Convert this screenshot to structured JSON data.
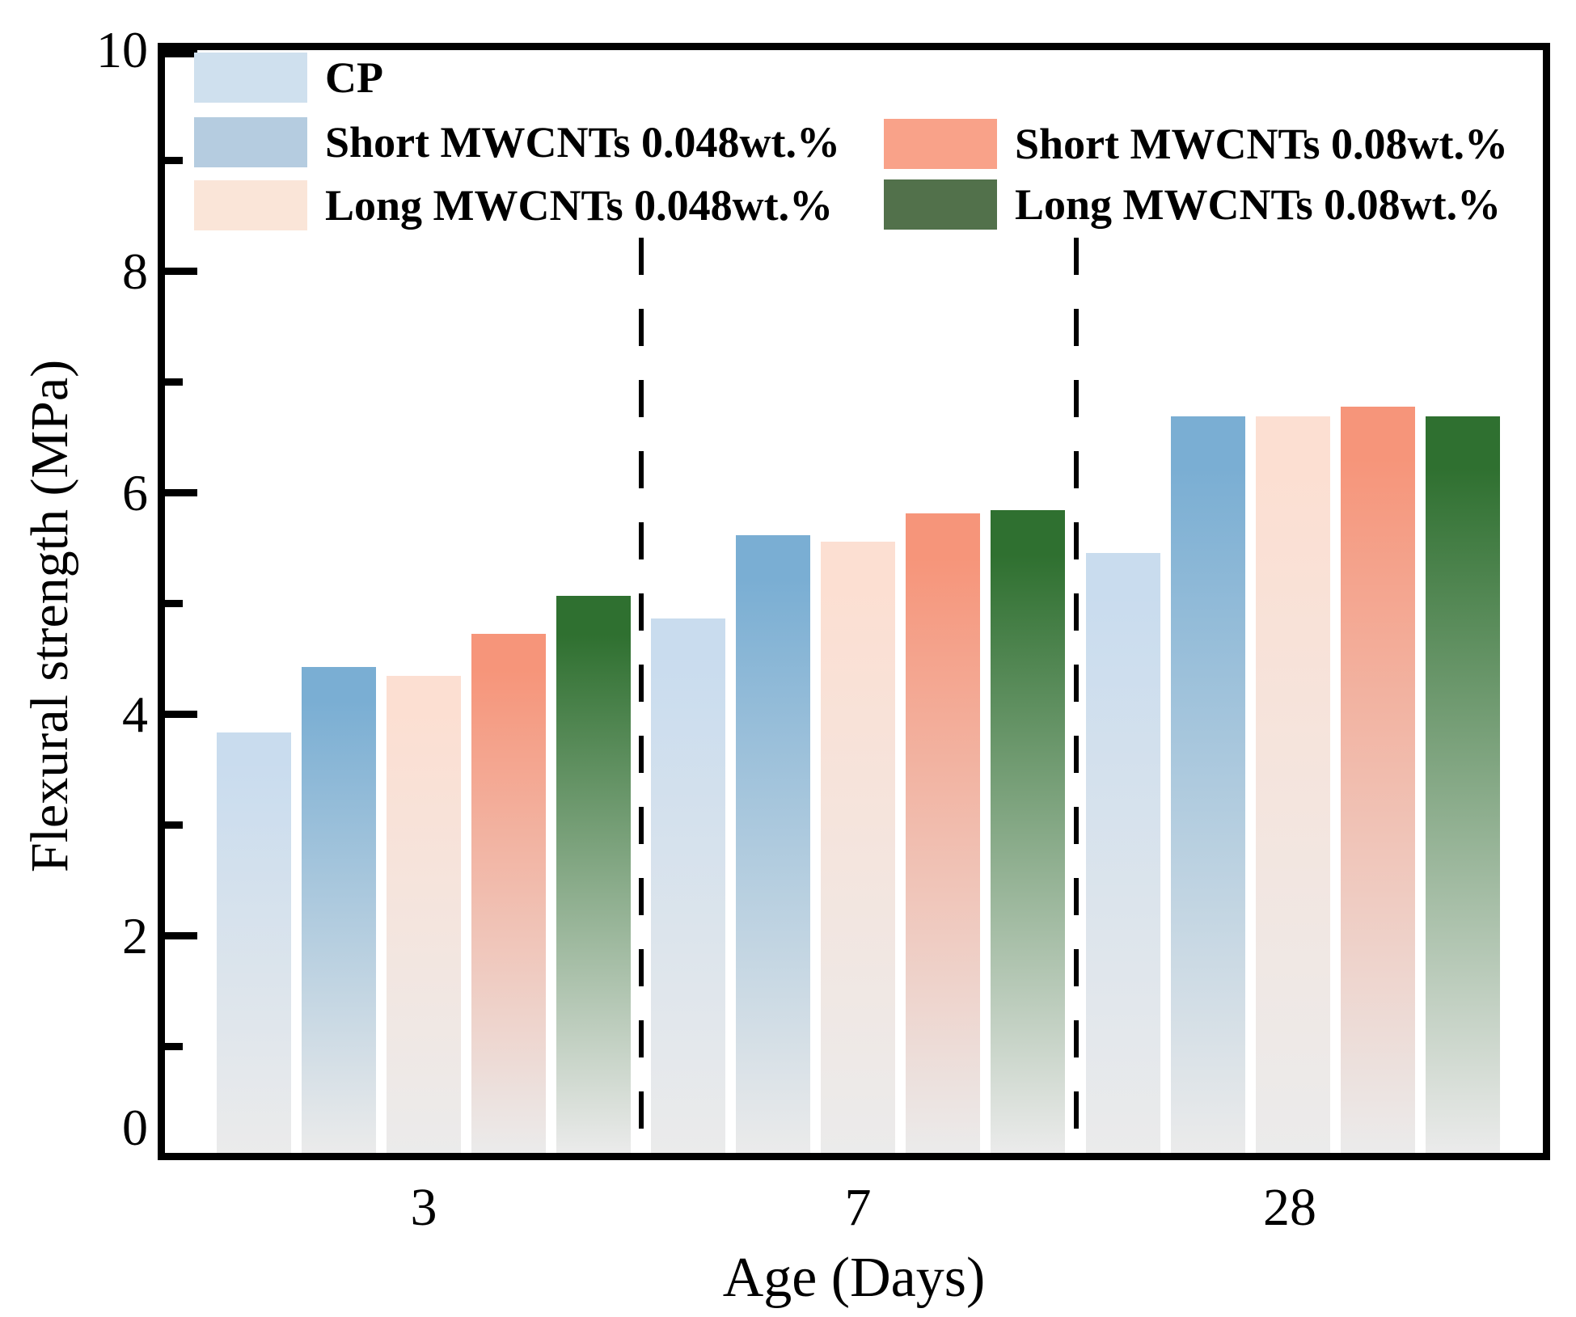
{
  "chart_data": {
    "type": "bar",
    "title": "",
    "xlabel": "Age (Days)",
    "ylabel": "Flexural strength (MPa)",
    "categories": [
      "3",
      "7",
      "28"
    ],
    "ylim": [
      0,
      10
    ],
    "y_major_ticks": [
      0,
      2,
      4,
      6,
      8,
      10
    ],
    "y_minor_ticks": [
      1,
      3,
      5,
      7,
      9
    ],
    "grid": false,
    "legend_position": "top-left inside plot, two columns",
    "bar_fade_base_color": "#ebebeb",
    "divider_style": "black dashed vertical lines between age groups",
    "series": [
      {
        "name": "CP",
        "legend_color": "#cfe0ee",
        "bar_top_color": "#c9dcee",
        "values": [
          3.84,
          4.87,
          5.46
        ]
      },
      {
        "name": "Short MWCNTs 0.048wt.%",
        "legend_color": "#b5cce0",
        "bar_top_color": "#7aaed3",
        "values": [
          4.43,
          5.62,
          6.69
        ]
      },
      {
        "name": "Long MWCNTs 0.048wt.%",
        "legend_color": "#fae5d8",
        "bar_top_color": "#fcdfd2",
        "values": [
          4.35,
          5.56,
          6.69
        ]
      },
      {
        "name": "Short MWCNTs 0.08wt.%",
        "legend_color": "#f9a289",
        "bar_top_color": "#f6957a",
        "values": [
          4.73,
          5.82,
          6.78
        ]
      },
      {
        "name": "Long MWCNTs 0.08wt.%",
        "legend_color": "#52714b",
        "bar_top_color": "#2f7030",
        "values": [
          5.07,
          5.85,
          6.69
        ]
      }
    ]
  }
}
